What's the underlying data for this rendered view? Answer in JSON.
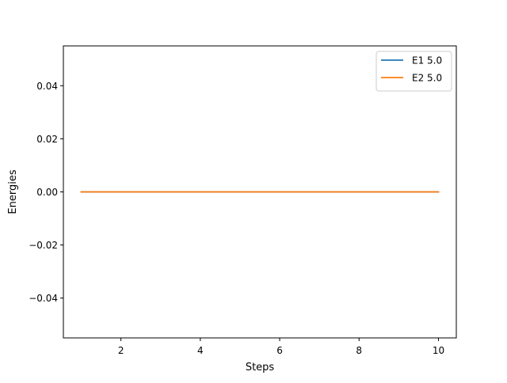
{
  "chart_data": {
    "type": "line",
    "title": "",
    "xlabel": "Steps",
    "ylabel": "Energies",
    "xlim": [
      0.55,
      10.45
    ],
    "ylim": [
      -0.055,
      0.055
    ],
    "xticks": [
      2,
      4,
      6,
      8,
      10
    ],
    "xtick_labels": [
      "2",
      "4",
      "6",
      "8",
      "10"
    ],
    "yticks": [
      -0.04,
      -0.02,
      0.0,
      0.02,
      0.04
    ],
    "ytick_labels": [
      "−0.04",
      "−0.02",
      "0.00",
      "0.02",
      "0.04"
    ],
    "grid": false,
    "legend": "upper right",
    "x": [
      1,
      2,
      3,
      4,
      5,
      6,
      7,
      8,
      9,
      10
    ],
    "series": [
      {
        "name": "E1 5.0",
        "color": "#1f77b4",
        "values": [
          0,
          0,
          0,
          0,
          0,
          0,
          0,
          0,
          0,
          0
        ]
      },
      {
        "name": "E2 5.0",
        "color": "#ff7f0e",
        "values": [
          0,
          0,
          0,
          0,
          0,
          0,
          0,
          0,
          0,
          0
        ]
      }
    ]
  }
}
